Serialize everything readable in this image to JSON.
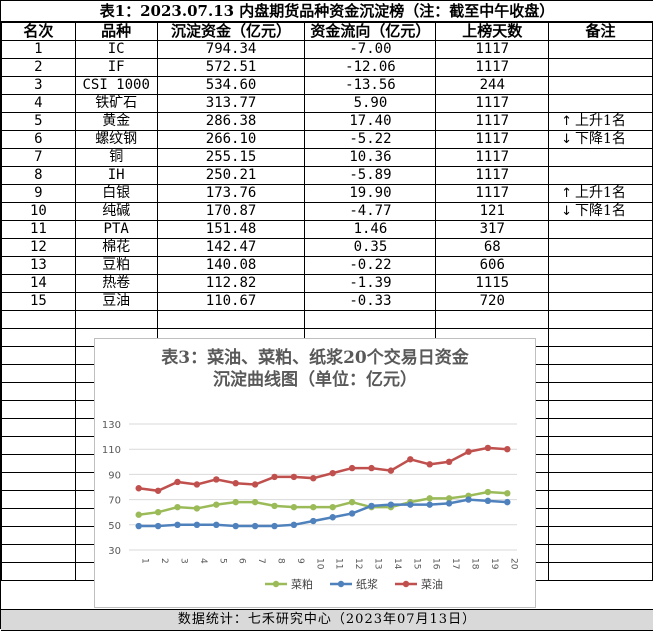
{
  "title": "表1：2023.07.13 内盘期货品种资金沉淀榜（注：截至中午收盘）",
  "headers": [
    "名次",
    "品种",
    "沉淀资金（亿元）",
    "资金流向（亿元）",
    "上榜天数",
    "备注"
  ],
  "rows": [
    {
      "rank": "1",
      "name": "IC",
      "funds": "794.34",
      "flow": "-7.00",
      "days": "1117",
      "note": ""
    },
    {
      "rank": "2",
      "name": "IF",
      "funds": "572.51",
      "flow": "-12.06",
      "days": "1117",
      "note": ""
    },
    {
      "rank": "3",
      "name": "CSI 1000",
      "funds": "534.60",
      "flow": "-13.56",
      "days": "244",
      "note": ""
    },
    {
      "rank": "4",
      "name": "铁矿石",
      "funds": "313.77",
      "flow": "5.90",
      "days": "1117",
      "note": ""
    },
    {
      "rank": "5",
      "name": "黄金",
      "funds": "286.38",
      "flow": "17.40",
      "days": "1117",
      "note": "上升1名",
      "dir": "up"
    },
    {
      "rank": "6",
      "name": "螺纹钢",
      "funds": "266.10",
      "flow": "-5.22",
      "days": "1117",
      "note": "下降1名",
      "dir": "down"
    },
    {
      "rank": "7",
      "name": "铜",
      "funds": "255.15",
      "flow": "10.36",
      "days": "1117",
      "note": ""
    },
    {
      "rank": "8",
      "name": "IH",
      "funds": "250.21",
      "flow": "-5.89",
      "days": "1117",
      "note": ""
    },
    {
      "rank": "9",
      "name": "白银",
      "funds": "173.76",
      "flow": "19.90",
      "days": "1117",
      "note": "上升1名",
      "dir": "up"
    },
    {
      "rank": "10",
      "name": "纯碱",
      "funds": "170.87",
      "flow": "-4.77",
      "days": "121",
      "note": "下降1名",
      "dir": "down"
    },
    {
      "rank": "11",
      "name": "PTA",
      "funds": "151.48",
      "flow": "1.46",
      "days": "317",
      "note": ""
    },
    {
      "rank": "12",
      "name": "棉花",
      "funds": "142.47",
      "flow": "0.35",
      "days": "68",
      "note": ""
    },
    {
      "rank": "13",
      "name": "豆粕",
      "funds": "140.08",
      "flow": "-0.22",
      "days": "606",
      "note": ""
    },
    {
      "rank": "14",
      "name": "热卷",
      "funds": "112.82",
      "flow": "-1.39",
      "days": "1115",
      "note": ""
    },
    {
      "rank": "15",
      "name": "豆油",
      "funds": "110.67",
      "flow": "-0.33",
      "days": "720",
      "note": ""
    }
  ],
  "footer": "数据统计：七禾研究中心（2023年07月13日）",
  "chart_data": {
    "type": "line",
    "title_line1": "表3：菜油、菜粕、纸浆20个交易日资金",
    "title_line2": "沉淀曲线图（单位：亿元）",
    "x": [
      "1",
      "2",
      "3",
      "4",
      "5",
      "6",
      "7",
      "8",
      "9",
      "10",
      "11",
      "12",
      "13",
      "14",
      "15",
      "16",
      "17",
      "18",
      "19",
      "20"
    ],
    "ylim": [
      30,
      130
    ],
    "yticks": [
      30,
      50,
      70,
      90,
      110,
      130
    ],
    "grid": true,
    "legend": "bottom",
    "series": [
      {
        "name": "菜粕",
        "color": "#9bbb59",
        "values": [
          58,
          60,
          64,
          63,
          66,
          68,
          68,
          65,
          64,
          64,
          64,
          68,
          64,
          64,
          68,
          71,
          71,
          73,
          76,
          75
        ]
      },
      {
        "name": "纸浆",
        "color": "#4f81bd",
        "values": [
          49,
          49,
          50,
          50,
          50,
          49,
          49,
          49,
          50,
          53,
          56,
          59,
          65,
          66,
          66,
          66,
          67,
          70,
          69,
          68
        ]
      },
      {
        "name": "菜油",
        "color": "#c0504d",
        "values": [
          79,
          77,
          84,
          82,
          86,
          83,
          82,
          88,
          88,
          87,
          91,
          95,
          95,
          93,
          102,
          98,
          100,
          108,
          111,
          110
        ]
      }
    ]
  }
}
